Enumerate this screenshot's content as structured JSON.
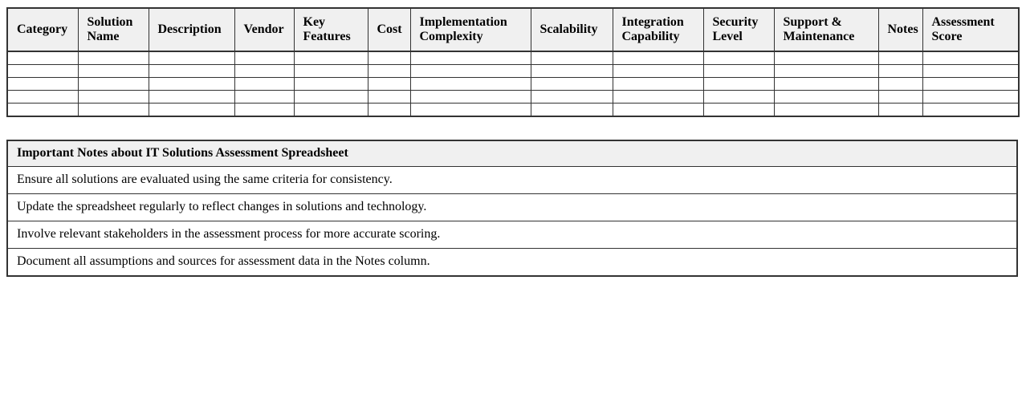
{
  "assessment_table": {
    "headers": [
      "Category",
      "Solution Name",
      "Description",
      "Vendor",
      "Key Features",
      "Cost",
      "Implementation Complexity",
      "Scalability",
      "Integration Capability",
      "Security Level",
      "Support & Maintenance",
      "Notes",
      "Assessment Score"
    ],
    "empty_rows": 5
  },
  "notes_table": {
    "title": "Important Notes about IT Solutions Assessment Spreadsheet",
    "rows": [
      "Ensure all solutions are evaluated using the same criteria for consistency.",
      "Update the spreadsheet regularly to reflect changes in solutions and technology.",
      "Involve relevant stakeholders in the assessment process for more accurate scoring.",
      "Document all assumptions and sources for assessment data in the Notes column."
    ]
  },
  "colors": {
    "header_background": "#f0f0f0",
    "border": "#333333",
    "text": "#000000",
    "page_background": "#ffffff"
  }
}
